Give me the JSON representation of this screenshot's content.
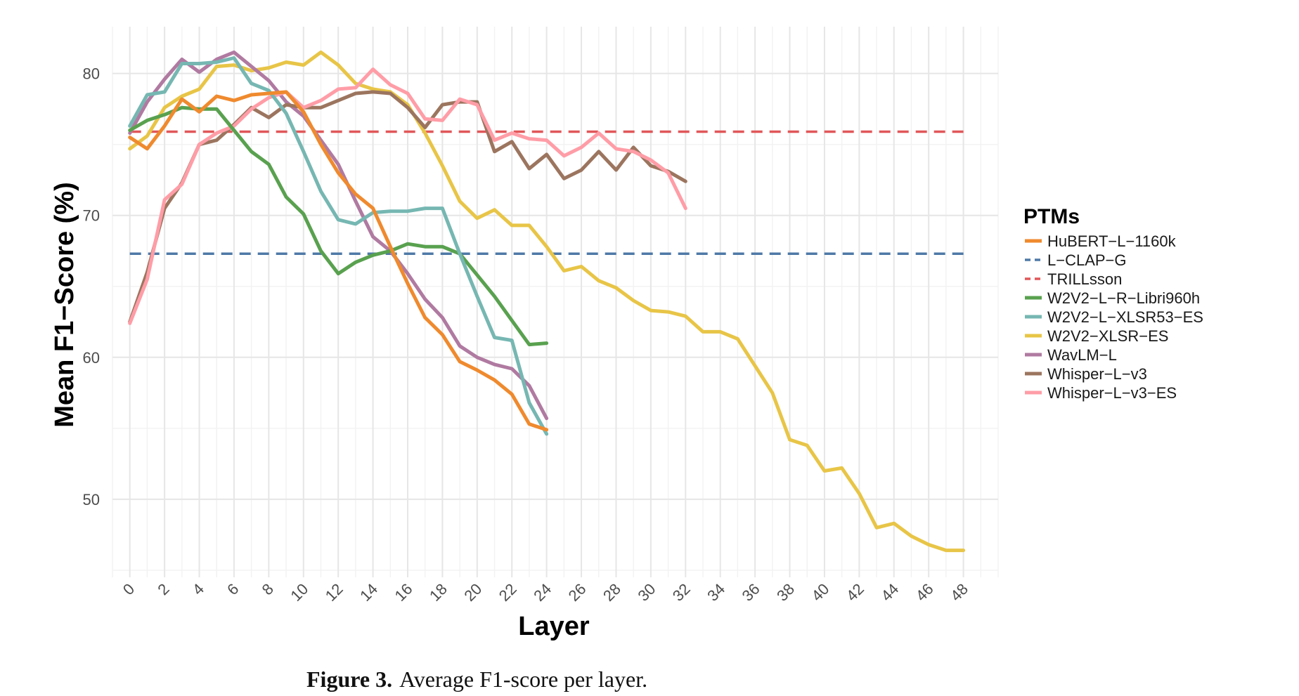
{
  "chart_data": {
    "type": "line",
    "xlabel": "Layer",
    "ylabel": "Mean F1−Score (%)",
    "xlim": [
      -1,
      50
    ],
    "ylim": [
      44.5,
      83.3
    ],
    "x_ticks": [
      0,
      2,
      4,
      6,
      8,
      10,
      12,
      14,
      16,
      18,
      20,
      22,
      24,
      26,
      28,
      30,
      32,
      34,
      36,
      38,
      40,
      42,
      44,
      46,
      48
    ],
    "x_tick_labels": [
      "0",
      "2",
      "4",
      "6",
      "8",
      "10",
      "12",
      "14",
      "16",
      "18",
      "20",
      "22",
      "24",
      "26",
      "28",
      "30",
      "32",
      "34",
      "36",
      "38",
      "40",
      "42",
      "44",
      "46",
      "48"
    ],
    "y_ticks": [
      50,
      60,
      70,
      80
    ],
    "y_tick_labels": [
      "50",
      "60",
      "70",
      "80"
    ],
    "grid": true,
    "legend_title": "PTMs",
    "legend_position": "right",
    "series": [
      {
        "name": "HuBERT−L−1160k",
        "color": "#ef8a2e",
        "dashed": false,
        "x": [
          0,
          1,
          2,
          3,
          4,
          5,
          6,
          7,
          8,
          9,
          10,
          11,
          12,
          13,
          14,
          15,
          16,
          17,
          18,
          19,
          20,
          21,
          22,
          23,
          24
        ],
        "values": [
          75.5,
          74.7,
          76.3,
          78.2,
          77.3,
          78.4,
          78.1,
          78.5,
          78.6,
          78.7,
          77.3,
          75.0,
          73.0,
          71.5,
          70.5,
          67.8,
          65.2,
          62.8,
          61.6,
          59.7,
          59.1,
          58.4,
          57.4,
          55.3,
          54.9
        ]
      },
      {
        "name": "L−CLAP−G",
        "color": "#4e79a7",
        "dashed": true,
        "x": [
          0,
          48
        ],
        "values": [
          67.3,
          67.3
        ]
      },
      {
        "name": "TRILLsson",
        "color": "#e15759",
        "dashed": true,
        "x": [
          0,
          48
        ],
        "values": [
          75.9,
          75.9
        ]
      },
      {
        "name": "W2V2−L−R−Libri960h",
        "color": "#59a14f",
        "dashed": false,
        "x": [
          0,
          1,
          2,
          3,
          4,
          5,
          6,
          7,
          8,
          9,
          10,
          11,
          12,
          13,
          14,
          15,
          16,
          17,
          18,
          19,
          20,
          21,
          22,
          23,
          24
        ],
        "values": [
          76.0,
          76.7,
          77.1,
          77.6,
          77.5,
          77.5,
          76.0,
          74.5,
          73.6,
          71.3,
          70.1,
          67.5,
          65.9,
          66.7,
          67.2,
          67.5,
          68.0,
          67.8,
          67.8,
          67.3,
          65.8,
          64.3,
          62.6,
          60.9,
          61.0
        ]
      },
      {
        "name": "W2V2−L−XLSR53−ES",
        "color": "#76b7b2",
        "dashed": false,
        "x": [
          0,
          1,
          2,
          3,
          4,
          5,
          6,
          7,
          8,
          9,
          10,
          11,
          12,
          13,
          14,
          15,
          16,
          17,
          18,
          19,
          20,
          21,
          22,
          23,
          24
        ],
        "values": [
          76.3,
          78.5,
          78.7,
          80.7,
          80.7,
          80.8,
          81.1,
          79.3,
          78.8,
          77.2,
          74.5,
          71.7,
          69.7,
          69.4,
          70.2,
          70.3,
          70.3,
          70.5,
          70.5,
          67.3,
          64.3,
          61.4,
          61.2,
          56.8,
          54.6
        ]
      },
      {
        "name": "W2V2−XLSR−ES",
        "color": "#e8c547",
        "dashed": false,
        "x": [
          0,
          1,
          2,
          3,
          4,
          5,
          6,
          7,
          8,
          9,
          10,
          11,
          12,
          13,
          14,
          15,
          16,
          17,
          18,
          19,
          20,
          21,
          22,
          23,
          24,
          25,
          26,
          27,
          28,
          29,
          30,
          31,
          32,
          33,
          34,
          35,
          36,
          37,
          38,
          39,
          40,
          41,
          42,
          43,
          44,
          45,
          46,
          47,
          48
        ],
        "values": [
          74.7,
          75.6,
          77.6,
          78.4,
          78.9,
          80.5,
          80.6,
          80.2,
          80.4,
          80.8,
          80.6,
          81.5,
          80.6,
          79.3,
          78.9,
          78.7,
          77.8,
          75.8,
          73.5,
          71.0,
          69.8,
          70.4,
          69.3,
          69.3,
          67.8,
          66.1,
          66.4,
          65.4,
          64.9,
          64.0,
          63.3,
          63.2,
          62.9,
          61.8,
          61.8,
          61.3,
          59.4,
          57.5,
          54.2,
          53.8,
          52.0,
          52.2,
          50.4,
          48.0,
          48.3,
          47.4,
          46.8,
          46.4,
          46.4
        ]
      },
      {
        "name": "WavLM−L",
        "color": "#b07aa1",
        "dashed": false,
        "x": [
          0,
          1,
          2,
          3,
          4,
          5,
          6,
          7,
          8,
          9,
          10,
          11,
          12,
          13,
          14,
          15,
          16,
          17,
          18,
          19,
          20,
          21,
          22,
          23,
          24
        ],
        "values": [
          75.8,
          78.0,
          79.6,
          81.0,
          80.1,
          81.0,
          81.5,
          80.5,
          79.5,
          78.0,
          77.0,
          75.3,
          73.6,
          71.0,
          68.5,
          67.5,
          65.9,
          64.1,
          62.8,
          60.8,
          60.0,
          59.5,
          59.2,
          58.0,
          55.7
        ]
      },
      {
        "name": "Whisper−L−v3",
        "color": "#9c755f",
        "dashed": false,
        "x": [
          0,
          1,
          2,
          3,
          4,
          5,
          6,
          7,
          8,
          9,
          10,
          11,
          12,
          13,
          14,
          15,
          16,
          17,
          18,
          19,
          20,
          21,
          22,
          23,
          24,
          25,
          26,
          27,
          28,
          29,
          30,
          31,
          32
        ],
        "values": [
          62.5,
          66.0,
          70.5,
          72.3,
          75.0,
          75.3,
          76.4,
          77.6,
          76.9,
          77.8,
          77.6,
          77.6,
          78.1,
          78.6,
          78.7,
          78.6,
          77.6,
          76.2,
          77.8,
          78.0,
          78.0,
          74.5,
          75.2,
          73.3,
          74.3,
          72.6,
          73.2,
          74.5,
          73.2,
          74.8,
          73.5,
          73.1,
          72.4
        ]
      },
      {
        "name": "Whisper−L−v3−ES",
        "color": "#ff9da7",
        "dashed": false,
        "x": [
          0,
          1,
          2,
          3,
          4,
          5,
          6,
          7,
          8,
          9,
          10,
          11,
          12,
          13,
          14,
          15,
          16,
          17,
          18,
          19,
          20,
          21,
          22,
          23,
          24,
          25,
          26,
          27,
          28,
          29,
          30,
          31,
          32
        ],
        "values": [
          62.4,
          65.5,
          71.1,
          72.2,
          75.0,
          75.8,
          76.3,
          77.5,
          78.3,
          78.7,
          77.6,
          78.1,
          78.9,
          79.0,
          80.3,
          79.2,
          78.6,
          76.8,
          76.7,
          78.2,
          77.8,
          75.3,
          75.8,
          75.4,
          75.3,
          74.2,
          74.8,
          75.8,
          74.7,
          74.5,
          73.9,
          73.0,
          70.5
        ]
      }
    ]
  },
  "caption": {
    "label": "Figure 3.",
    "text": "Average F1-score per layer."
  }
}
